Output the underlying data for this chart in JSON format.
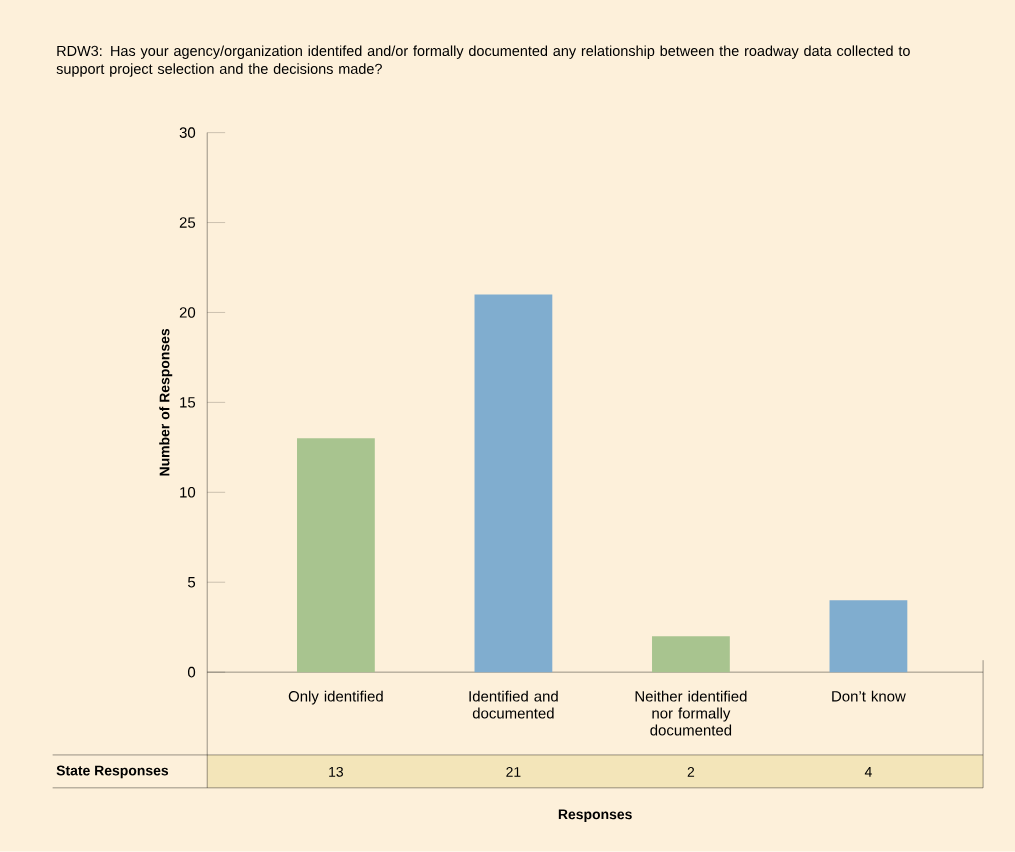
{
  "chart_data": {
    "type": "bar",
    "title": "RDW3: Has your agency/organization identifed and/or formally documented any relationship between the roadway data collected to support project selection  and the decisions made?",
    "ylabel": "Number of Responses",
    "categories": [
      "Only identified",
      "Identified and documented",
      "Neither identified nor formally documented",
      "Don’t know"
    ],
    "values": [
      13,
      21,
      2,
      4
    ],
    "value_labels": [
      "13",
      "21",
      "2",
      "4"
    ],
    "colors": [
      "#a8c48f",
      "#80adcf",
      "#a8c48f",
      "#80adcf"
    ],
    "ylim": [
      0,
      30
    ],
    "yticks": [
      0,
      5,
      10,
      15,
      20,
      25,
      30
    ],
    "annotations": [
      "State Responses",
      "Responses"
    ]
  }
}
